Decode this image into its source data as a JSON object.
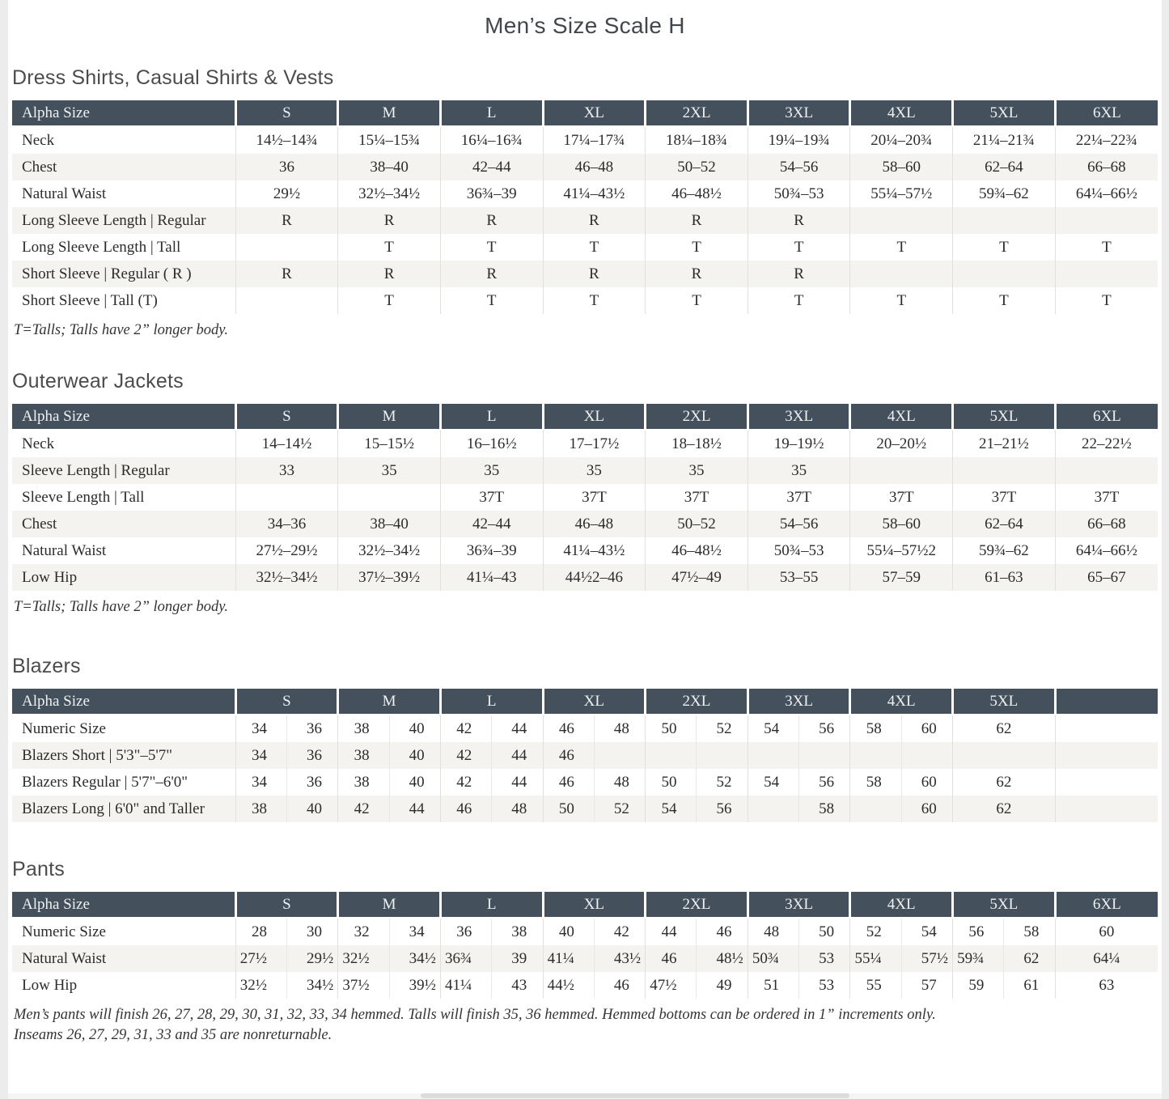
{
  "page_title": "Men’s Size Scale H",
  "colors": {
    "table_header_bg": "#44515d",
    "table_header_text": "#eef0f1",
    "zebra_row_bg": "#f4f3f0",
    "page_bg": "#ffffff",
    "frame_bg": "#ececec"
  },
  "sections": [
    {
      "heading": "Dress Shirts, Casual Shirts & Vests",
      "table": {
        "split": false,
        "header": [
          "Alpha Size",
          "S",
          "M",
          "L",
          "XL",
          "2XL",
          "3XL",
          "4XL",
          "5XL",
          "6XL"
        ],
        "rows": [
          {
            "label": "Neck",
            "values": [
              "14½–14¾",
              "15¼–15¾",
              "16¼–16¾",
              "17¼–17¾",
              "18¼–18¾",
              "19¼–19¾",
              "20¼–20¾",
              "21¼–21¾",
              "22¼–22¾"
            ]
          },
          {
            "label": "Chest",
            "values": [
              "36",
              "38–40",
              "42–44",
              "46–48",
              "50–52",
              "54–56",
              "58–60",
              "62–64",
              "66–68"
            ]
          },
          {
            "label": "Natural Waist",
            "values": [
              "29½",
              "32½–34½",
              "36¾–39",
              "41¼–43½",
              "46–48½",
              "50¾–53",
              "55¼–57½",
              "59¾–62",
              "64¼–66½"
            ]
          },
          {
            "label": "Long Sleeve Length | Regular",
            "values": [
              "R",
              "R",
              "R",
              "R",
              "R",
              "R",
              "",
              "",
              ""
            ]
          },
          {
            "label": "Long Sleeve Length | Tall",
            "values": [
              "",
              "T",
              "T",
              "T",
              "T",
              "T",
              "T",
              "T",
              "T"
            ]
          },
          {
            "label": "Short Sleeve | Regular ( R )",
            "values": [
              "R",
              "R",
              "R",
              "R",
              "R",
              "R",
              "",
              "",
              ""
            ]
          },
          {
            "label": "Short Sleeve | Tall (T)",
            "values": [
              "",
              "T",
              "T",
              "T",
              "T",
              "T",
              "T",
              "T",
              "T"
            ]
          }
        ]
      },
      "footnotes": [
        "T=Talls; Talls have 2” longer body."
      ]
    },
    {
      "heading": "Outerwear Jackets",
      "table": {
        "split": false,
        "header": [
          "Alpha Size",
          "S",
          "M",
          "L",
          "XL",
          "2XL",
          "3XL",
          "4XL",
          "5XL",
          "6XL"
        ],
        "rows": [
          {
            "label": "Neck",
            "values": [
              "14–14½",
              "15–15½",
              "16–16½",
              "17–17½",
              "18–18½",
              "19–19½",
              "20–20½",
              "21–21½",
              "22–22½"
            ]
          },
          {
            "label": "Sleeve Length | Regular",
            "values": [
              "33",
              "35",
              "35",
              "35",
              "35",
              "35",
              "",
              "",
              ""
            ]
          },
          {
            "label": "Sleeve Length | Tall",
            "values": [
              "",
              "",
              "37T",
              "37T",
              "37T",
              "37T",
              "37T",
              "37T",
              "37T"
            ]
          },
          {
            "label": "Chest",
            "values": [
              "34–36",
              "38–40",
              "42–44",
              "46–48",
              "50–52",
              "54–56",
              "58–60",
              "62–64",
              "66–68"
            ]
          },
          {
            "label": "Natural Waist",
            "values": [
              "27½–29½",
              "32½–34½",
              "36¾–39",
              "41¼–43½",
              "46–48½",
              "50¾–53",
              "55¼–57½2",
              "59¾–62",
              "64¼–66½"
            ]
          },
          {
            "label": "Low Hip",
            "values": [
              "32½–34½",
              "37½–39½",
              "41¼–43",
              "44½2–46",
              "47½–49",
              "53–55",
              "57–59",
              "61–63",
              "65–67"
            ]
          }
        ]
      },
      "footnotes": [
        "T=Talls; Talls have 2” longer body."
      ]
    },
    {
      "heading": "Blazers",
      "table": {
        "split": true,
        "header": [
          "Alpha Size",
          "S",
          "M",
          "L",
          "XL",
          "2XL",
          "3XL",
          "4XL",
          "5XL",
          ""
        ],
        "rows": [
          {
            "label": "Numeric Size",
            "values": [
              [
                "34",
                "36"
              ],
              [
                "38",
                "40"
              ],
              [
                "42",
                "44"
              ],
              [
                "46",
                "48"
              ],
              [
                "50",
                "52"
              ],
              [
                "54",
                "56"
              ],
              [
                "58",
                "60"
              ],
              "62",
              ""
            ]
          },
          {
            "label": "Blazers Short | 5'3\"–5'7\"",
            "values": [
              [
                "34",
                "36"
              ],
              [
                "38",
                "40"
              ],
              [
                "42",
                "44"
              ],
              [
                "46",
                ""
              ],
              [
                "",
                ""
              ],
              [
                "",
                ""
              ],
              [
                "",
                ""
              ],
              "",
              ""
            ]
          },
          {
            "label": "Blazers Regular | 5'7\"–6'0\"",
            "values": [
              [
                "34",
                "36"
              ],
              [
                "38",
                "40"
              ],
              [
                "42",
                "44"
              ],
              [
                "46",
                "48"
              ],
              [
                "50",
                "52"
              ],
              [
                "54",
                "56"
              ],
              [
                "58",
                "60"
              ],
              "62",
              ""
            ]
          },
          {
            "label": "Blazers Long | 6'0\" and Taller",
            "values": [
              [
                "38",
                "40"
              ],
              [
                "42",
                "44"
              ],
              [
                "46",
                "48"
              ],
              [
                "50",
                "52"
              ],
              [
                "54",
                "56"
              ],
              [
                "",
                "58"
              ],
              [
                "",
                "60"
              ],
              "62",
              ""
            ]
          }
        ]
      },
      "footnotes": []
    },
    {
      "heading": "Pants",
      "table": {
        "split": true,
        "header": [
          "Alpha Size",
          "S",
          "M",
          "L",
          "XL",
          "2XL",
          "3XL",
          "4XL",
          "5XL",
          "6XL"
        ],
        "rows": [
          {
            "label": "Numeric Size",
            "values": [
              [
                "28",
                "30"
              ],
              [
                "32",
                "34"
              ],
              [
                "36",
                "38"
              ],
              [
                "40",
                "42"
              ],
              [
                "44",
                "46"
              ],
              [
                "48",
                "50"
              ],
              [
                "52",
                "54"
              ],
              [
                "56",
                "58"
              ],
              "60"
            ]
          },
          {
            "label": "Natural Waist",
            "values": [
              [
                "27½",
                "29½"
              ],
              [
                "32½",
                "34½"
              ],
              [
                "36¾",
                "39"
              ],
              [
                "41¼",
                "43½"
              ],
              [
                "46",
                "48½"
              ],
              [
                "50¾",
                "53"
              ],
              [
                "55¼",
                "57½"
              ],
              [
                "59¾",
                "62"
              ],
              "64¼"
            ]
          },
          {
            "label": "Low Hip",
            "values": [
              [
                "32½",
                "34½"
              ],
              [
                "37½",
                "39½"
              ],
              [
                "41¼",
                "43"
              ],
              [
                "44½",
                "46"
              ],
              [
                "47½",
                "49"
              ],
              [
                "51",
                "53"
              ],
              [
                "55",
                "57"
              ],
              [
                "59",
                "61"
              ],
              "63"
            ]
          }
        ]
      },
      "footnotes": [
        "Men’s pants will finish 26, 27, 28, 29, 30, 31, 32, 33, 34 hemmed. Talls will finish 35, 36 hemmed. Hemmed bottoms can be ordered in 1” increments only.",
        "Inseams 26, 27, 29, 31, 33 and 35 are nonreturnable."
      ]
    }
  ]
}
